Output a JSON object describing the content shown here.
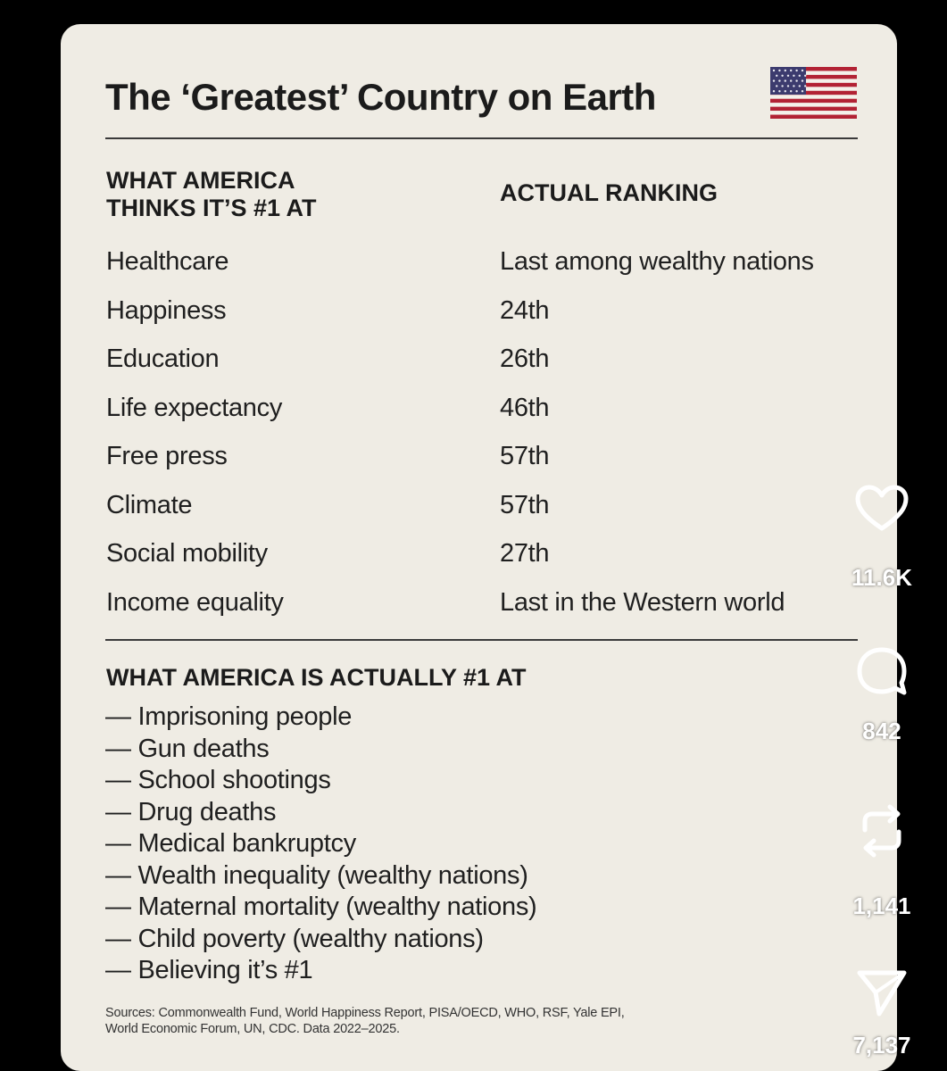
{
  "post": {
    "title": "The ‘Greatest’ Country on Earth",
    "flag_icon": "us-flag-icon",
    "col_left_header": [
      "WHAT AMERICA",
      "THINKS IT’S #1 AT"
    ],
    "col_right_header": "ACTUAL RANKING",
    "rows": [
      {
        "category": "Healthcare",
        "ranking": "Last among wealthy nations"
      },
      {
        "category": "Happiness",
        "ranking": "24th"
      },
      {
        "category": "Education",
        "ranking": "26th"
      },
      {
        "category": "Life expectancy",
        "ranking": "46th"
      },
      {
        "category": "Free press",
        "ranking": "57th"
      },
      {
        "category": "Climate",
        "ranking": "57th"
      },
      {
        "category": "Social mobility",
        "ranking": "27th"
      },
      {
        "category": "Income equality",
        "ranking": "Last in the Western world"
      }
    ],
    "actual_header": "WHAT AMERICA IS ACTUALLY #1 AT",
    "actual_items": [
      "— Imprisoning people",
      "— Gun deaths",
      "— School shootings",
      "— Drug deaths",
      "— Medical bankruptcy",
      "— Wealth inequality (wealthy nations)",
      "— Maternal mortality (wealthy nations)",
      "— Child poverty (wealthy nations)",
      "— Believing it’s #1"
    ],
    "sources": [
      "Sources: Commonwealth Fund, World Happiness Report, PISA/OECD, WHO, RSF, Yale EPI,",
      "World Economic Forum, UN, CDC. Data 2022–2025."
    ]
  },
  "actions": {
    "like": {
      "icon": "heart-icon",
      "count": "11.6K"
    },
    "comment": {
      "icon": "comment-icon",
      "count": "842"
    },
    "repost": {
      "icon": "repost-icon",
      "count": "1,141"
    },
    "share": {
      "icon": "send-icon",
      "count": "7,137"
    }
  },
  "colors": {
    "background": "#000000",
    "card": "#efece4",
    "text": "#1b1b1b",
    "flag_red": "#b22234",
    "flag_blue": "#3c3b6e"
  }
}
